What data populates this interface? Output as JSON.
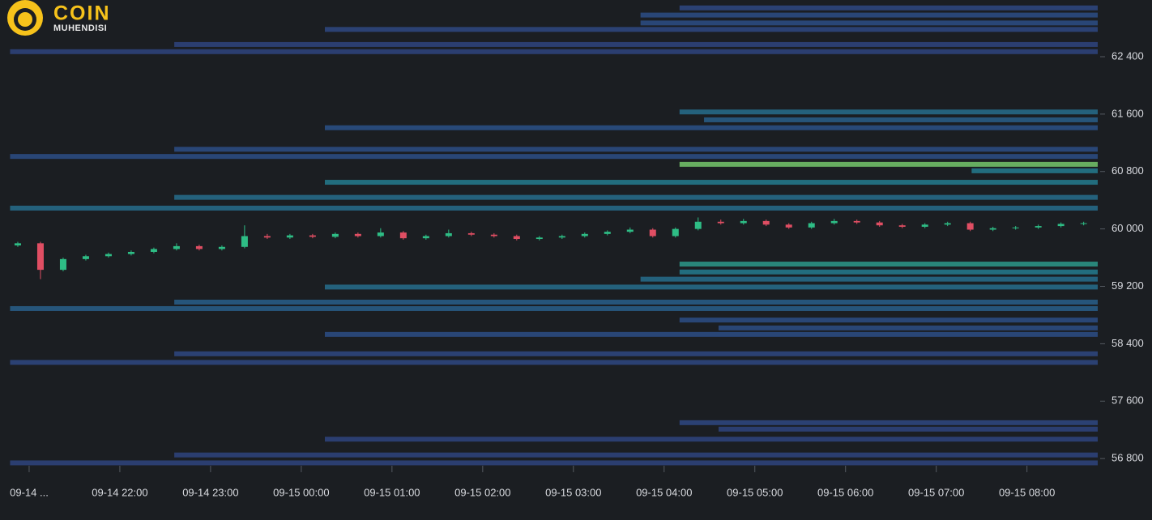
{
  "brand": {
    "name": "COIN",
    "tagline": "MUHENDISI"
  },
  "chart_data": {
    "type": "candlestick",
    "up_color": "#2ebd85",
    "down_color": "#e04e63",
    "xlim": [
      20.786,
      32.78
    ],
    "xticks": [
      {
        "value": 21,
        "label": "09-14 ..."
      },
      {
        "value": 22,
        "label": "09-14 22:00"
      },
      {
        "value": 23,
        "label": "09-14 23:00"
      },
      {
        "value": 24,
        "label": "09-15 00:00"
      },
      {
        "value": 25,
        "label": "09-15 01:00"
      },
      {
        "value": 26,
        "label": "09-15 02:00"
      },
      {
        "value": 27,
        "label": "09-15 03:00"
      },
      {
        "value": 28,
        "label": "09-15 04:00"
      },
      {
        "value": 29,
        "label": "09-15 05:00"
      },
      {
        "value": 30,
        "label": "09-15 06:00"
      },
      {
        "value": 31,
        "label": "09-15 07:00"
      },
      {
        "value": 32,
        "label": "09-15 08:00"
      }
    ],
    "ylim": [
      56700,
      63190
    ],
    "yticks": [
      {
        "value": 56800,
        "label": "56 800"
      },
      {
        "value": 57600,
        "label": "57 600"
      },
      {
        "value": 58400,
        "label": "58 400"
      },
      {
        "value": 59200,
        "label": "59 200"
      },
      {
        "value": 60000,
        "label": "60 000"
      },
      {
        "value": 60800,
        "label": "60 800"
      },
      {
        "value": 61600,
        "label": "61 600"
      },
      {
        "value": 62400,
        "label": "62 400"
      }
    ],
    "x": [
      20.875,
      21.125,
      21.375,
      21.625,
      21.875,
      22.125,
      22.375,
      22.625,
      22.875,
      23.125,
      23.375,
      23.625,
      23.875,
      24.125,
      24.375,
      24.625,
      24.875,
      25.125,
      25.375,
      25.625,
      25.875,
      26.125,
      26.375,
      26.625,
      26.875,
      27.125,
      27.375,
      27.625,
      27.875,
      28.125,
      28.375,
      28.625,
      28.875,
      29.125,
      29.375,
      29.625,
      29.875,
      30.125,
      30.375,
      30.625,
      30.875,
      31.125,
      31.375,
      31.625,
      31.875,
      32.125,
      32.375,
      32.625
    ],
    "open": [
      59770,
      59800,
      59430,
      59580,
      59620,
      59650,
      59680,
      59720,
      59760,
      59720,
      59750,
      59900,
      59880,
      59910,
      59890,
      59930,
      59900,
      59950,
      59870,
      59900,
      59940,
      59920,
      59900,
      59860,
      59880,
      59900,
      59930,
      59960,
      59990,
      59900,
      60000,
      60100,
      60080,
      60110,
      60060,
      60020,
      60080,
      60110,
      60090,
      60050,
      60030,
      60060,
      60080,
      59990,
      60010,
      60020,
      60040,
      60070
    ],
    "close": [
      59800,
      59430,
      59580,
      59620,
      59650,
      59680,
      59720,
      59760,
      59720,
      59750,
      59900,
      59880,
      59910,
      59890,
      59930,
      59900,
      59950,
      59870,
      59900,
      59940,
      59920,
      59900,
      59860,
      59880,
      59900,
      59930,
      59960,
      59990,
      59900,
      60000,
      60100,
      60080,
      60110,
      60060,
      60020,
      60080,
      60110,
      60090,
      60050,
      60030,
      60060,
      60080,
      59990,
      60010,
      60020,
      60040,
      60070,
      60080
    ],
    "high": [
      59820,
      59820,
      59600,
      59640,
      59670,
      59700,
      59740,
      59800,
      59780,
      59770,
      60050,
      59930,
      59930,
      59930,
      59950,
      59950,
      60010,
      59970,
      59920,
      59990,
      59960,
      59940,
      59920,
      59900,
      59920,
      59950,
      59980,
      60020,
      60010,
      60020,
      60160,
      60130,
      60140,
      60130,
      60080,
      60100,
      60140,
      60130,
      60110,
      60070,
      60080,
      60100,
      60100,
      60030,
      60040,
      60060,
      60090,
      60100
    ],
    "low": [
      59750,
      59300,
      59410,
      59560,
      59600,
      59630,
      59660,
      59700,
      59700,
      59700,
      59730,
      59860,
      59860,
      59870,
      59870,
      59880,
      59880,
      59850,
      59850,
      59880,
      59900,
      59880,
      59840,
      59840,
      59860,
      59880,
      59910,
      59940,
      59880,
      59880,
      59980,
      60060,
      60060,
      60040,
      60000,
      60000,
      60060,
      60070,
      60030,
      60010,
      60010,
      60040,
      59970,
      59970,
      59990,
      60000,
      60020,
      60050
    ],
    "levels": [
      {
        "price": 63080,
        "start": 28.17,
        "intensity": 0.25
      },
      {
        "price": 62980,
        "start": 27.74,
        "intensity": 0.3
      },
      {
        "price": 62870,
        "start": 27.74,
        "intensity": 0.3
      },
      {
        "price": 62780,
        "start": 24.26,
        "intensity": 0.25
      },
      {
        "price": 62570,
        "start": 22.6,
        "intensity": 0.2
      },
      {
        "price": 62470,
        "start": 20.79,
        "intensity": 0.2
      },
      {
        "price": 61630,
        "start": 28.17,
        "intensity": 0.45
      },
      {
        "price": 61520,
        "start": 28.44,
        "intensity": 0.4
      },
      {
        "price": 61410,
        "start": 24.26,
        "intensity": 0.35
      },
      {
        "price": 61110,
        "start": 22.6,
        "intensity": 0.3
      },
      {
        "price": 61010,
        "start": 20.79,
        "intensity": 0.3
      },
      {
        "price": 60900,
        "start": 28.17,
        "intensity": 0.8
      },
      {
        "price": 60810,
        "start": 31.39,
        "intensity": 0.5
      },
      {
        "price": 60650,
        "start": 24.26,
        "intensity": 0.5
      },
      {
        "price": 60440,
        "start": 22.6,
        "intensity": 0.45
      },
      {
        "price": 60290,
        "start": 20.79,
        "intensity": 0.45
      },
      {
        "price": 59510,
        "start": 28.17,
        "intensity": 0.6
      },
      {
        "price": 59400,
        "start": 28.17,
        "intensity": 0.5
      },
      {
        "price": 59300,
        "start": 27.74,
        "intensity": 0.45
      },
      {
        "price": 59190,
        "start": 24.26,
        "intensity": 0.45
      },
      {
        "price": 58980,
        "start": 22.6,
        "intensity": 0.4
      },
      {
        "price": 58890,
        "start": 20.79,
        "intensity": 0.4
      },
      {
        "price": 58730,
        "start": 28.17,
        "intensity": 0.3
      },
      {
        "price": 58620,
        "start": 28.6,
        "intensity": 0.3
      },
      {
        "price": 58530,
        "start": 24.26,
        "intensity": 0.3
      },
      {
        "price": 58260,
        "start": 22.6,
        "intensity": 0.25
      },
      {
        "price": 58140,
        "start": 20.79,
        "intensity": 0.25
      },
      {
        "price": 57300,
        "start": 28.17,
        "intensity": 0.25
      },
      {
        "price": 57210,
        "start": 28.6,
        "intensity": 0.2
      },
      {
        "price": 57070,
        "start": 24.26,
        "intensity": 0.2
      },
      {
        "price": 56850,
        "start": 22.6,
        "intensity": 0.2
      },
      {
        "price": 56740,
        "start": 20.79,
        "intensity": 0.2
      }
    ]
  }
}
